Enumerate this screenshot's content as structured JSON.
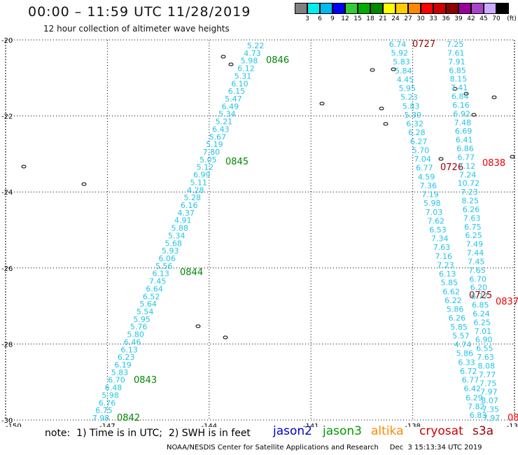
{
  "title": "00:00 – 11:59 UTC 11/28/2019",
  "subtitle": "12 hour collection of altimeter wave heights",
  "legend": {
    "unit": "(ft)",
    "colors": [
      "#808080",
      "#00eeee",
      "#00bbee",
      "#0000ff",
      "#33cc33",
      "#00aa00",
      "#008800",
      "#ffff00",
      "#ffcc00",
      "#ff8800",
      "#ff0000",
      "#cc0000",
      "#880000",
      "#990099",
      "#aa44cc",
      "#ccaaff",
      "#000000"
    ],
    "labels": [
      "3",
      "6",
      "9",
      "12",
      "15",
      "18",
      "21",
      "24",
      "27",
      "30",
      "33",
      "36",
      "39",
      "42",
      "45",
      "70"
    ]
  },
  "map": {
    "lat_range": [
      -30,
      -20
    ],
    "lon_range": [
      -150,
      -135
    ],
    "y_ticks": [
      "-20",
      "-22",
      "-24",
      "-26",
      "-28",
      "-30"
    ],
    "x_ticks": [
      "-150",
      "-147",
      "-144",
      "-141",
      "-138",
      "-135"
    ]
  },
  "tracks": [
    {
      "name": "western",
      "color": "#22c4e8",
      "values": [
        "5.22",
        "4.73",
        "5.98",
        "6.12",
        "5.31",
        "6.10",
        "6.15",
        "5.47",
        "6.49",
        "5.34",
        "5.21",
        "6.43",
        "5.67",
        "5.19",
        "7.80",
        "5.05",
        "5.12",
        "6.99",
        "5.11",
        "4.28",
        "5.28",
        "6.16",
        "4.37",
        "4.91",
        "5.88",
        "5.34",
        "5.68",
        "5.93",
        "6.06",
        "5.56",
        "6.13",
        "7.45",
        "6.64",
        "6.52",
        "5.64",
        "5.54",
        "5.95",
        "5.76",
        "5.80",
        "6.46",
        "6.13",
        "6.23",
        "6.19",
        "5.83",
        "6.70",
        "6.48",
        "5.98",
        "6.76",
        "6.75",
        "7.98"
      ],
      "times": [
        {
          "label": "0846",
          "color": "#008800"
        },
        {
          "label": "0845",
          "color": "#008800"
        },
        {
          "label": "0844",
          "color": "#008800"
        },
        {
          "label": "0843",
          "color": "#008800"
        },
        {
          "label": "0842",
          "color": "#008800"
        }
      ]
    },
    {
      "name": "middle",
      "color": "#22c4e8",
      "values": [
        "6.74",
        "5.92",
        "5.83",
        "5.84",
        "4.45",
        "5.95",
        "5.23",
        "5.83",
        "5.39",
        "6.32",
        "6.28",
        "6.27",
        "5.70",
        "7.04",
        "6.77",
        "4.59",
        "7.36",
        "7.19",
        "5.98",
        "7.03",
        "7.62",
        "6.53",
        "7.34",
        "7.63",
        "7.16",
        "7.23",
        "6.13",
        "5.85",
        "6.62",
        "6.22",
        "5.86",
        "6.26",
        "5.85",
        "5.57",
        "4.74",
        "5.86",
        "6.33",
        "6.72",
        "6.77",
        "6.42",
        "6.29",
        "7.82",
        "6.83"
      ],
      "times": [
        {
          "label": "0727",
          "color": "#990000"
        },
        {
          "label": "0726",
          "color": "#990000"
        },
        {
          "label": "0725",
          "color": "#990000"
        }
      ]
    },
    {
      "name": "eastern",
      "color": "#22c4e8",
      "values": [
        "7.25",
        "7.61",
        "7.91",
        "6.85",
        "8.15",
        "7.41",
        "6.84",
        "6.16",
        "6.92",
        "7.48",
        "6.69",
        "6.41",
        "6.86",
        "6.77",
        "7.12",
        "7.24",
        "10.72",
        "7.23",
        "8.25",
        "6.26",
        "7.63",
        "6.75",
        "6.25",
        "7.49",
        "7.44",
        "7.45",
        "7.65",
        "6.70",
        "6.20",
        "6.77",
        "6.85",
        "6.24",
        "6.25",
        "7.01",
        "6.90",
        "6.55",
        "7.63",
        "8.08",
        "7.77",
        "7.75",
        "7.97",
        "8.07",
        "7.35",
        "7.97"
      ],
      "times": [
        {
          "label": "0838",
          "color": "#ee0000"
        },
        {
          "label": "0837",
          "color": "#ee0000"
        },
        {
          "label": "08",
          "color": "#ee0000"
        }
      ]
    }
  ],
  "note": "note:  1) Time is in UTC;  2) SWH is in feet",
  "satellites": [
    {
      "name": "jason2",
      "color": "#0000cc"
    },
    {
      "name": "jason3",
      "color": "#009900"
    },
    {
      "name": "altika",
      "color": "#ff8800"
    },
    {
      "name": "cryosat",
      "color": "#cc0000"
    },
    {
      "name": "s3a",
      "color": "#990000"
    }
  ],
  "credit": "NOAA/NESDIS Center for Satellite Applications and Research     Dec  3 15:13:34 UTC 2019"
}
